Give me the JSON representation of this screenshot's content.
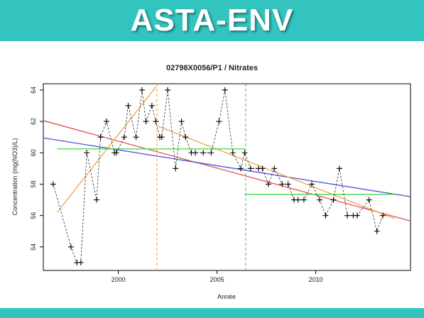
{
  "header": {
    "title": "ASTA-ENV",
    "bg_color": "#33c4c0",
    "text_color": "#ffffff"
  },
  "chart_data": {
    "type": "scatter",
    "title": "02798X0056/P1 / Nitrates",
    "xlabel": "Année",
    "ylabel": "Concentration (mg(NO3)/L)",
    "xlim": [
      1996.2,
      2014.8
    ],
    "ylim": [
      52.5,
      64.4
    ],
    "x_ticks": [
      2000,
      2005,
      2010
    ],
    "y_ticks": [
      54,
      56,
      58,
      60,
      62,
      64
    ],
    "x_tick_labels": [
      "2000",
      "2005",
      "2010"
    ],
    "y_tick_labels": [
      "54",
      "56",
      "58",
      "60",
      "62",
      "64"
    ],
    "grid": false,
    "series": [
      {
        "kind": "points",
        "color": "#000000",
        "style": "plus-markers-dashed",
        "points": [
          [
            1996.7,
            58
          ],
          [
            1997.6,
            54
          ],
          [
            1997.9,
            53
          ],
          [
            1998.1,
            53
          ],
          [
            1998.4,
            60
          ],
          [
            1998.9,
            57
          ],
          [
            1999.1,
            61
          ],
          [
            1999.4,
            62
          ],
          [
            1999.8,
            60
          ],
          [
            1999.9,
            60
          ],
          [
            2000.3,
            61
          ],
          [
            2000.5,
            63
          ],
          [
            2000.9,
            61
          ],
          [
            2001.2,
            64
          ],
          [
            2001.4,
            62
          ],
          [
            2001.7,
            63
          ],
          [
            2001.9,
            62
          ],
          [
            2002.1,
            61
          ],
          [
            2002.2,
            61
          ],
          [
            2002.5,
            64
          ],
          [
            2002.9,
            59
          ],
          [
            2003.2,
            62
          ],
          [
            2003.4,
            61
          ],
          [
            2003.7,
            60
          ],
          [
            2003.9,
            60
          ],
          [
            2004.3,
            60
          ],
          [
            2004.7,
            60
          ],
          [
            2005.1,
            62
          ],
          [
            2005.4,
            64
          ],
          [
            2005.8,
            60
          ],
          [
            2006.2,
            59
          ],
          [
            2006.4,
            60
          ],
          [
            2006.7,
            59
          ],
          [
            2007.1,
            59
          ],
          [
            2007.3,
            59
          ],
          [
            2007.6,
            58
          ],
          [
            2007.9,
            59
          ],
          [
            2008.3,
            58
          ],
          [
            2008.6,
            58
          ],
          [
            2008.9,
            57
          ],
          [
            2009.1,
            57
          ],
          [
            2009.4,
            57
          ],
          [
            2009.8,
            58
          ],
          [
            2010.2,
            57
          ],
          [
            2010.5,
            56
          ],
          [
            2010.9,
            57
          ],
          [
            2011.2,
            59
          ],
          [
            2011.6,
            56
          ],
          [
            2011.9,
            56
          ],
          [
            2012.1,
            56
          ],
          [
            2012.7,
            57
          ],
          [
            2013.1,
            55
          ],
          [
            2013.4,
            56
          ]
        ]
      },
      {
        "kind": "line",
        "color": "#e05050",
        "points": [
          [
            1996.2,
            62.05
          ],
          [
            2014.8,
            55.65
          ]
        ]
      },
      {
        "kind": "line",
        "color": "#5050d8",
        "points": [
          [
            1996.2,
            60.95
          ],
          [
            2014.8,
            57.2
          ]
        ]
      },
      {
        "kind": "line",
        "color": "#f0a050",
        "points": [
          [
            1996.9,
            56.2
          ],
          [
            2001.9,
            64.2
          ]
        ]
      },
      {
        "kind": "line",
        "color": "#f0a050",
        "points": [
          [
            2002.0,
            61.7
          ],
          [
            2014.0,
            55.8
          ]
        ]
      },
      {
        "kind": "line",
        "color": "#40d840",
        "points": [
          [
            1996.9,
            60.25
          ],
          [
            2006.4,
            60.25
          ]
        ]
      },
      {
        "kind": "line",
        "color": "#40d840",
        "points": [
          [
            2006.4,
            57.35
          ],
          [
            2014.0,
            57.35
          ]
        ]
      },
      {
        "kind": "vline",
        "color": "#f0a030",
        "style": "dashed",
        "x": 2001.95
      },
      {
        "kind": "vline",
        "color": "#30c830",
        "style": "dashed",
        "x": 2006.45
      }
    ]
  }
}
